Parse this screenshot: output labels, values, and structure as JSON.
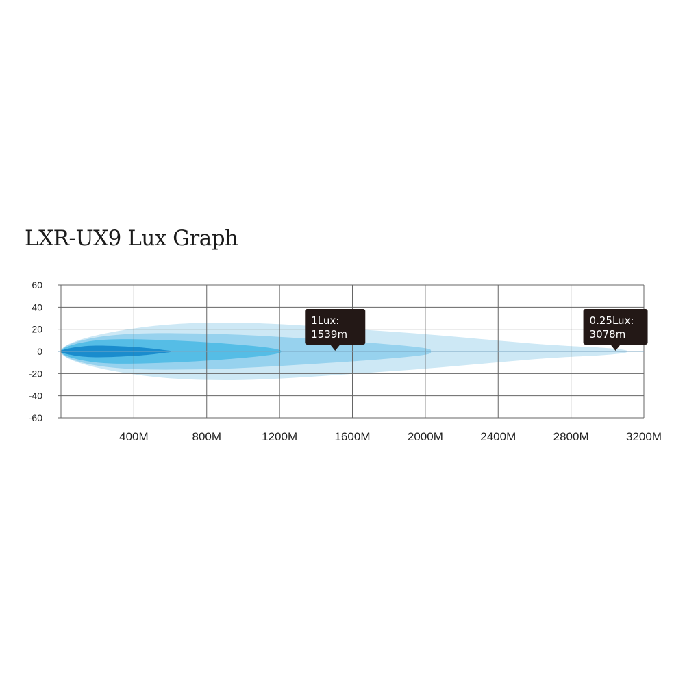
{
  "chart_data": {
    "type": "area",
    "title": "LXR-UX9 Lux Graph",
    "xlabel": "",
    "ylabel": "",
    "xlim": [
      0,
      3200
    ],
    "ylim": [
      -60,
      60
    ],
    "x_ticks": [
      0,
      400,
      800,
      1200,
      1600,
      2000,
      2400,
      2800,
      3200
    ],
    "x_tick_labels": [
      "400M",
      "800M",
      "1200M",
      "1600M",
      "2000M",
      "2400M",
      "2800M",
      "3200M"
    ],
    "y_ticks": [
      60,
      40,
      20,
      0,
      -20,
      -40,
      -60
    ],
    "y_tick_labels": [
      "60",
      "40",
      "20",
      "0",
      "-20",
      "-40",
      "-60"
    ],
    "grid": true,
    "series": [
      {
        "color": "#cde8f5",
        "points": [
          [
            0,
            0
          ],
          [
            300,
            18
          ],
          [
            900,
            26
          ],
          [
            1800,
            18
          ],
          [
            2600,
            7
          ],
          [
            3000,
            3
          ],
          [
            3110,
            0
          ],
          [
            3000,
            -3
          ],
          [
            2600,
            -7
          ],
          [
            1800,
            -18
          ],
          [
            900,
            -26
          ],
          [
            300,
            -18
          ],
          [
            0,
            0
          ]
        ]
      },
      {
        "color": "#97d2ee",
        "points": [
          [
            0,
            0
          ],
          [
            250,
            14
          ],
          [
            800,
            16
          ],
          [
            1500,
            10
          ],
          [
            1950,
            4
          ],
          [
            2030,
            0
          ],
          [
            1950,
            -4
          ],
          [
            1500,
            -10
          ],
          [
            800,
            -16
          ],
          [
            250,
            -14
          ],
          [
            0,
            0
          ]
        ]
      },
      {
        "color": "#55bde6",
        "points": [
          [
            0,
            0
          ],
          [
            200,
            10
          ],
          [
            600,
            10
          ],
          [
            1050,
            5
          ],
          [
            1210,
            0
          ],
          [
            1050,
            -5
          ],
          [
            600,
            -10
          ],
          [
            200,
            -10
          ],
          [
            0,
            0
          ]
        ]
      },
      {
        "color": "#1a8ccd",
        "points": [
          [
            0,
            0
          ],
          [
            150,
            5
          ],
          [
            400,
            4
          ],
          [
            580,
            1
          ],
          [
            600,
            0
          ],
          [
            580,
            -1
          ],
          [
            400,
            -4
          ],
          [
            150,
            -5
          ],
          [
            0,
            0
          ]
        ]
      }
    ],
    "annotations": [
      {
        "line1": "1Lux:",
        "line2": "1539m",
        "x": 1539,
        "y": 0
      },
      {
        "line1": "0.25Lux:",
        "line2": "3078m",
        "x": 3078,
        "y": 0
      }
    ],
    "colors": {
      "grid": "#666666",
      "zero_line": "#7aa6c2",
      "callout_bg": "#231816"
    }
  }
}
